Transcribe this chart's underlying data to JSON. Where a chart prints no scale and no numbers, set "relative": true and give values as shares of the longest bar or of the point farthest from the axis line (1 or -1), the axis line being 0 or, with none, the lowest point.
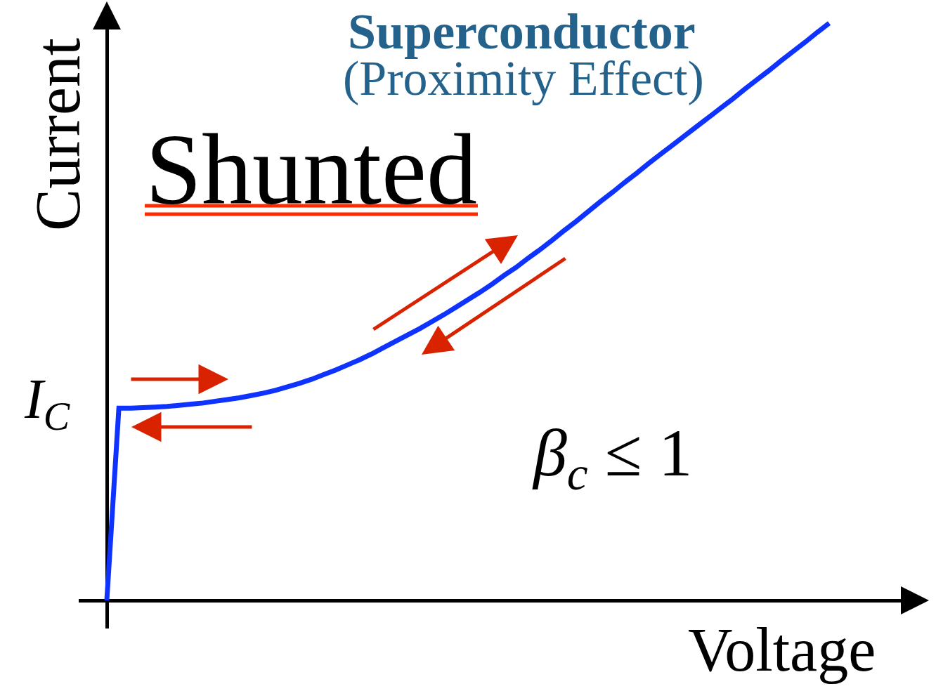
{
  "chart_data": {
    "type": "line",
    "title": "Superconductor",
    "subtitle": "(Proximity Effect)",
    "xlabel": "Voltage",
    "ylabel": "Current",
    "relative": true,
    "categories": [
      null,
      null,
      null,
      null,
      null,
      null,
      null,
      null,
      null,
      null,
      null,
      null,
      null,
      null,
      null,
      null,
      null,
      null,
      null,
      null,
      null,
      null,
      null,
      null,
      null,
      null,
      null,
      null,
      null,
      null,
      null,
      null,
      null,
      null,
      null,
      null,
      null,
      null,
      null,
      null,
      null,
      null,
      null,
      null,
      null,
      null,
      null,
      null,
      null,
      null,
      null,
      null,
      null,
      null,
      null,
      null,
      null,
      null,
      null,
      null,
      null
    ],
    "series": [
      {
        "color": "#0f33ff",
        "values": [
          0,
          0.333,
          0.333,
          0.334,
          0.335,
          0.336,
          0.338,
          0.34,
          0.342,
          0.345,
          0.348,
          0.351,
          0.355,
          0.359,
          0.364,
          0.37,
          0.376,
          0.383,
          0.391,
          0.399,
          0.408,
          0.417,
          0.427,
          0.438,
          0.449,
          0.46,
          0.471,
          0.483,
          0.495,
          0.508,
          0.521,
          0.534,
          0.548,
          0.563,
          0.577,
          0.593,
          0.608,
          0.624,
          0.641,
          0.657,
          0.674,
          0.691,
          0.707,
          0.724,
          0.74,
          0.757,
          0.773,
          0.789,
          0.805,
          0.821,
          0.837,
          0.853,
          0.869,
          0.886,
          0.902,
          0.918,
          0.935,
          0.951,
          0.967,
          0.984,
          1.0
        ]
      }
    ],
    "annotations": [
      "Shunted",
      "I$_{C}$",
      "β$_{c}$ ≤ 1"
    ],
    "line_style": "solid"
  }
}
